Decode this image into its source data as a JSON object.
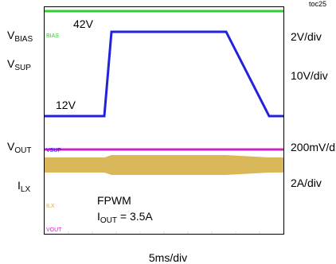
{
  "figure_id": "toc25",
  "left_labels": {
    "vbias": {
      "main": "V",
      "sub": "BIAS"
    },
    "vsup": {
      "main": "V",
      "sub": "SUP"
    },
    "vout": {
      "main": "V",
      "sub": "OUT"
    },
    "ilx": {
      "main": "I",
      "sub": "LX"
    }
  },
  "right_scales": {
    "vbias": "2V/div",
    "vsup": "10V/div",
    "vout": "200mV/div",
    "ilx": "2A/div"
  },
  "annotations": {
    "high_level": "42V",
    "low_level": "12V",
    "mode": "FPWM",
    "iout_main": "I",
    "iout_sub": "OUT",
    "iout_value": " = 3.5A"
  },
  "timebase": "5ms/div",
  "channel_tags": {
    "bias": "BIAS",
    "vsup": "VSUP",
    "ilx": "ILX",
    "vout": "VOUT"
  },
  "chart_data": {
    "type": "line",
    "title": "",
    "x_unit": "ms",
    "x_scale": "5ms/div",
    "xlim": [
      0,
      50
    ],
    "series": [
      {
        "name": "VBIAS",
        "color": "#33cc33",
        "scale": "2V/div",
        "x": [
          0,
          50
        ],
        "y": [
          5,
          5
        ]
      },
      {
        "name": "VSUP",
        "color": "#2222dd",
        "scale": "10V/div",
        "x": [
          0,
          12.5,
          14.0,
          38.0,
          47.0,
          50
        ],
        "y": [
          12,
          12,
          42,
          42,
          12,
          12
        ]
      },
      {
        "name": "VOUT",
        "color": "#cc22cc",
        "scale": "200mV/div",
        "x": [
          0,
          50
        ],
        "y": [
          5.0,
          5.0
        ]
      },
      {
        "name": "ILX",
        "color": "#d4aa3c",
        "scale": "2A/div",
        "x": [
          0,
          12.5,
          14.0,
          38.0,
          47.0,
          50
        ],
        "y": [
          3.5,
          3.5,
          3.5,
          3.5,
          3.5,
          3.5
        ]
      }
    ]
  },
  "colors": {
    "vbias": "#33cc33",
    "vsup": "#2222dd",
    "vout": "#cc22cc",
    "ilx": "#d4aa3c"
  }
}
